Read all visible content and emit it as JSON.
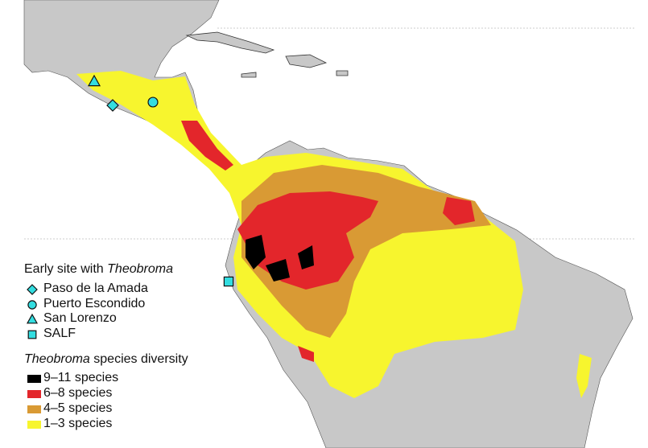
{
  "legend": {
    "sites_title": {
      "text": "Early site with ",
      "italic": "Theobroma"
    },
    "sites": [
      {
        "label": "Paso de la Amada",
        "symbol": "diamond"
      },
      {
        "label": "Puerto Escondido",
        "symbol": "circle"
      },
      {
        "label": "San Lorenzo",
        "symbol": "triangle"
      },
      {
        "label": "SALF",
        "symbol": "square"
      }
    ],
    "diversity_title": {
      "italic": "Theobroma",
      "text": " species diversity"
    },
    "classes": [
      {
        "label": "9–11 species",
        "color": "#000000"
      },
      {
        "label": "6–8 species",
        "color": "#e3262b"
      },
      {
        "label": "4–5 species",
        "color": "#d99a34"
      },
      {
        "label": "1–3 species",
        "color": "#f7f52e"
      }
    ]
  }
}
